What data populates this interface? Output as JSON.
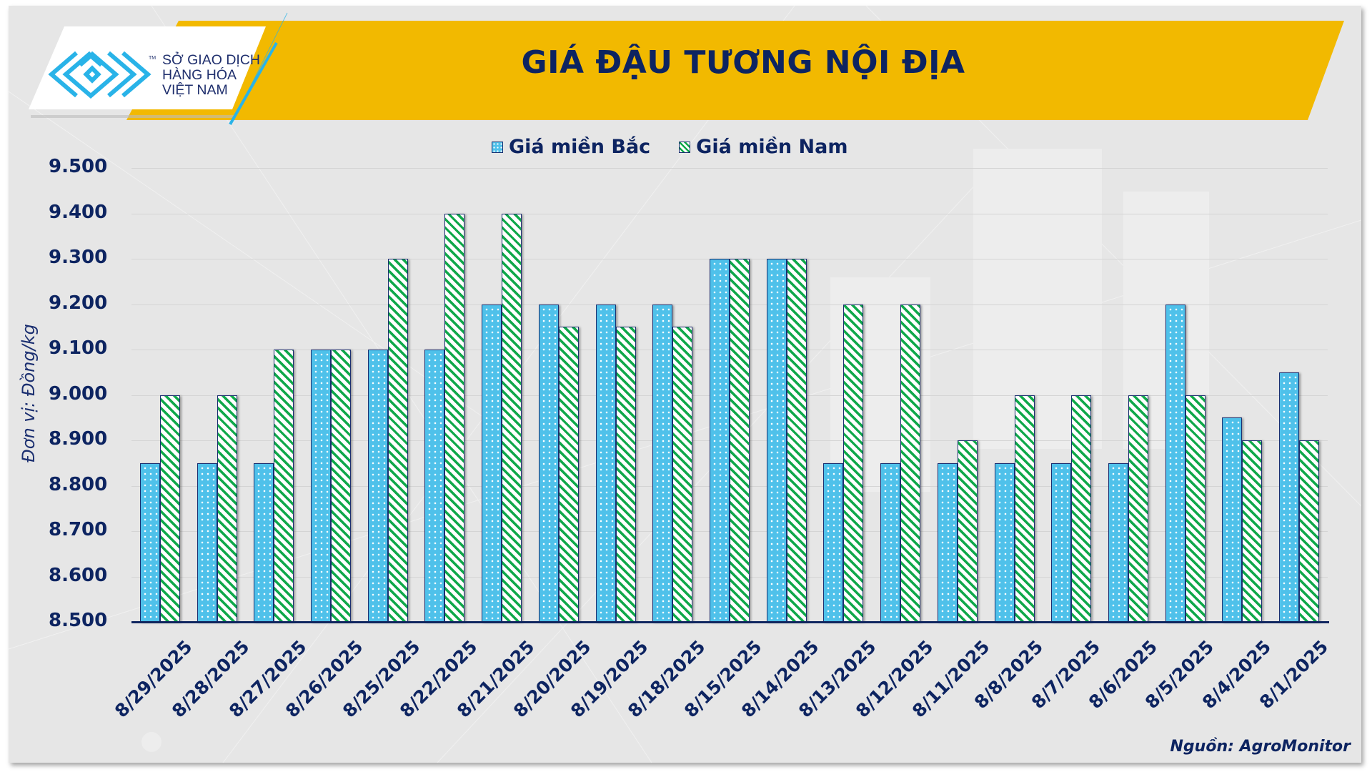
{
  "brand": {
    "logo_lines": [
      "SỞ GIAO DỊCH",
      "HÀNG HÓA",
      "VIỆT NAM"
    ],
    "tm": "TM",
    "logo_color": "#29b3e8"
  },
  "header": {
    "title": "GIÁ ĐẬU TƯƠNG NỘI ĐỊA",
    "banner_color": "#f2b900",
    "title_color": "#0d2461"
  },
  "legend": {
    "items": [
      {
        "label": "Giá miền Bắc",
        "pattern": "dotted",
        "color": "#4fc1ea"
      },
      {
        "label": "Giá miền Nam",
        "pattern": "diagonal-stripes",
        "color": "#0fa84a"
      }
    ]
  },
  "axes": {
    "ylabel": "Đơn vị: Đồng/kg",
    "yticks": [
      "9.500",
      "9.400",
      "9.300",
      "9.200",
      "9.100",
      "9.000",
      "8.900",
      "8.800",
      "8.700",
      "8.600",
      "8.500"
    ]
  },
  "source": "Nguồn: AgroMonitor",
  "chart_data": {
    "type": "bar",
    "title": "GIÁ ĐẬU TƯƠNG NỘI ĐỊA",
    "xlabel": "",
    "ylabel": "Đơn vị: Đồng/kg",
    "ylim": [
      8500,
      9500
    ],
    "ytick_step": 100,
    "grid": true,
    "legend_position": "top",
    "categories": [
      "8/29/2025",
      "8/28/2025",
      "8/27/2025",
      "8/26/2025",
      "8/25/2025",
      "8/22/2025",
      "8/21/2025",
      "8/20/2025",
      "8/19/2025",
      "8/18/2025",
      "8/15/2025",
      "8/14/2025",
      "8/13/2025",
      "8/12/2025",
      "8/11/2025",
      "8/8/2025",
      "8/7/2025",
      "8/6/2025",
      "8/5/2025",
      "8/4/2025",
      "8/1/2025"
    ],
    "series": [
      {
        "name": "Giá miền Bắc",
        "values": [
          8850,
          8850,
          8850,
          9100,
          9100,
          9100,
          9200,
          9200,
          9200,
          9200,
          9300,
          9300,
          8850,
          8850,
          8850,
          8850,
          8850,
          8850,
          9200,
          8950,
          9050
        ]
      },
      {
        "name": "Giá miền Nam",
        "values": [
          9000,
          9000,
          9100,
          9100,
          9300,
          9400,
          9400,
          9150,
          9150,
          9150,
          9300,
          9300,
          9200,
          9200,
          8900,
          9000,
          9000,
          9000,
          9000,
          8900,
          8900
        ]
      }
    ],
    "source": "Nguồn: AgroMonitor"
  }
}
